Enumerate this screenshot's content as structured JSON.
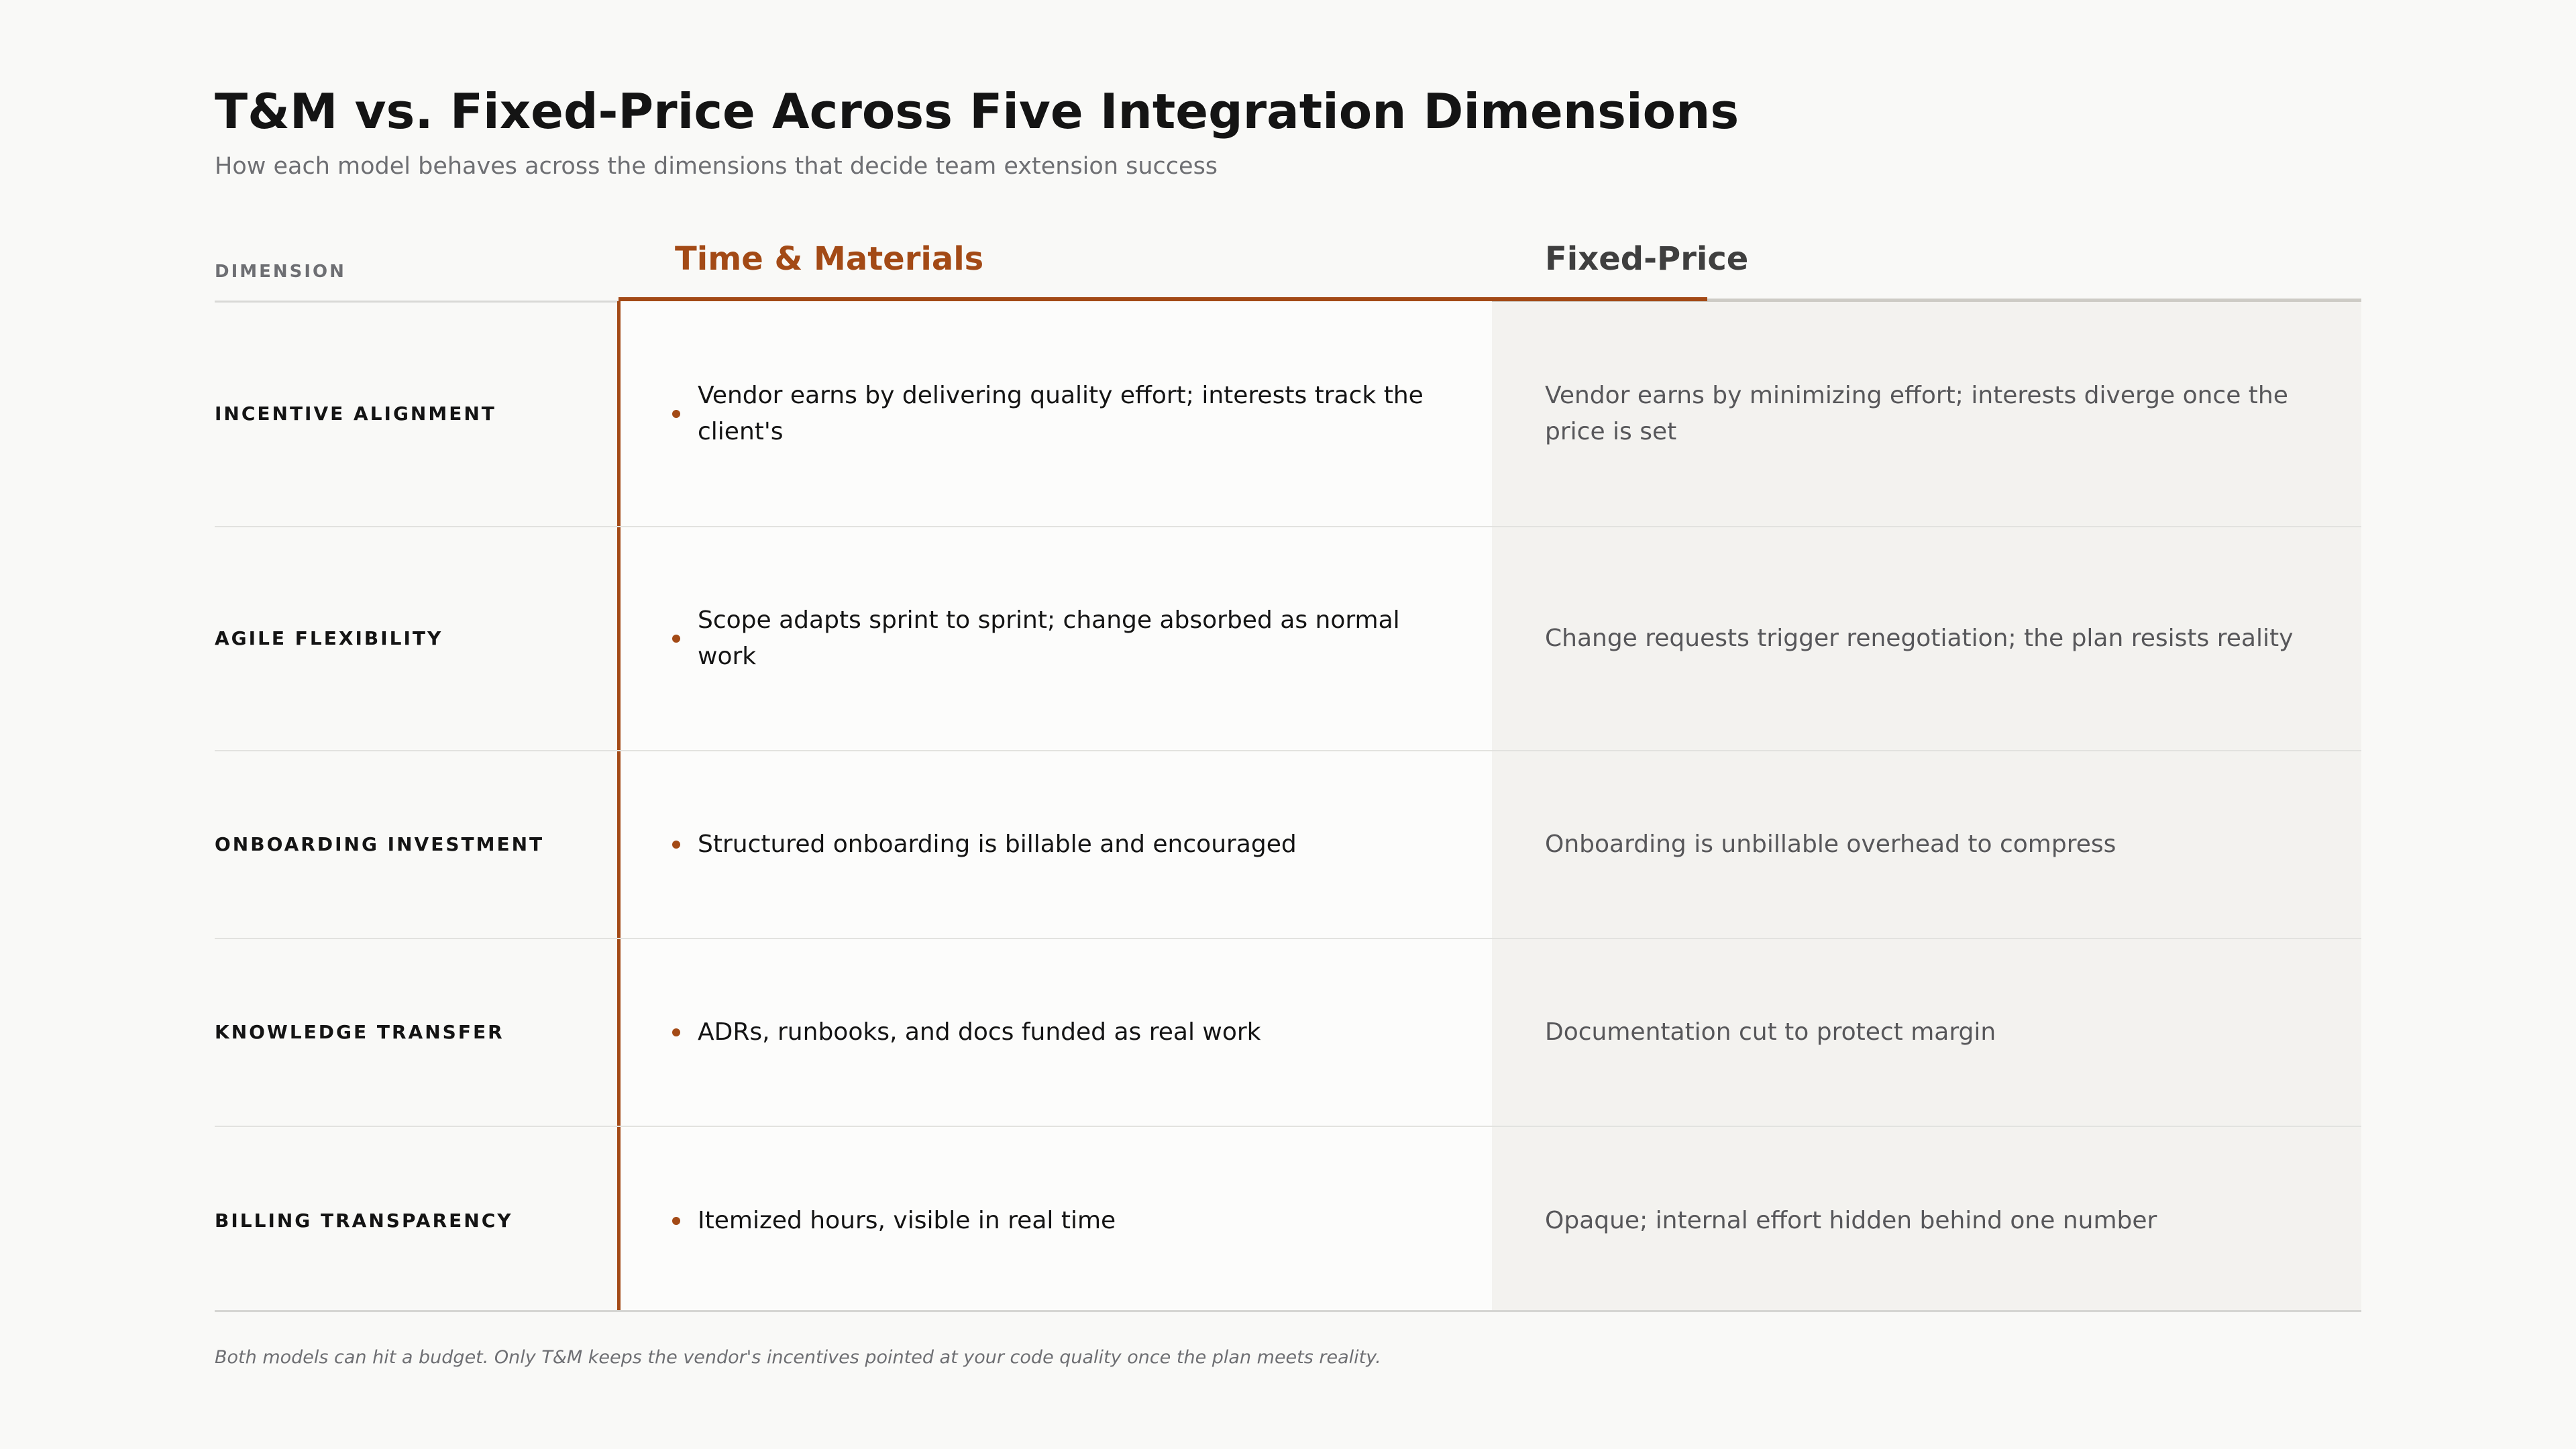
{
  "title": "T&M vs. Fixed-Price Across Five Integration Dimensions",
  "subtitle": "How each model behaves across the dimensions that decide team extension success",
  "table": {
    "dimension_header": "DIMENSION",
    "columns": {
      "tm": "Time & Materials",
      "fp": "Fixed-Price"
    },
    "rows": [
      {
        "dimension": "INCENTIVE ALIGNMENT",
        "tm": "Vendor earns by delivering quality effort; interests track the client's",
        "fp": "Vendor earns by minimizing effort; interests diverge once the price is set"
      },
      {
        "dimension": "AGILE FLEXIBILITY",
        "tm": "Scope adapts sprint to sprint; change absorbed as normal work",
        "fp": "Change requests trigger renegotiation; the plan resists reality"
      },
      {
        "dimension": "ONBOARDING INVESTMENT",
        "tm": "Structured onboarding is billable and encouraged",
        "fp": "Onboarding is unbillable overhead to compress"
      },
      {
        "dimension": "KNOWLEDGE TRANSFER",
        "tm": "ADRs, runbooks, and docs funded as real work",
        "fp": "Documentation cut to protect margin"
      },
      {
        "dimension": "BILLING TRANSPARENCY",
        "tm": "Itemized hours, visible in real time",
        "fp": "Opaque; internal effort hidden behind one number"
      }
    ]
  },
  "footnote": "Both models can hit a budget. Only T&M keeps the vendor's incentives pointed at your code quality once the plan meets reality.",
  "colors": {
    "accent": "#a34a16",
    "background": "#f9f9f7",
    "fixed_price_column": "#f3f2ef"
  }
}
